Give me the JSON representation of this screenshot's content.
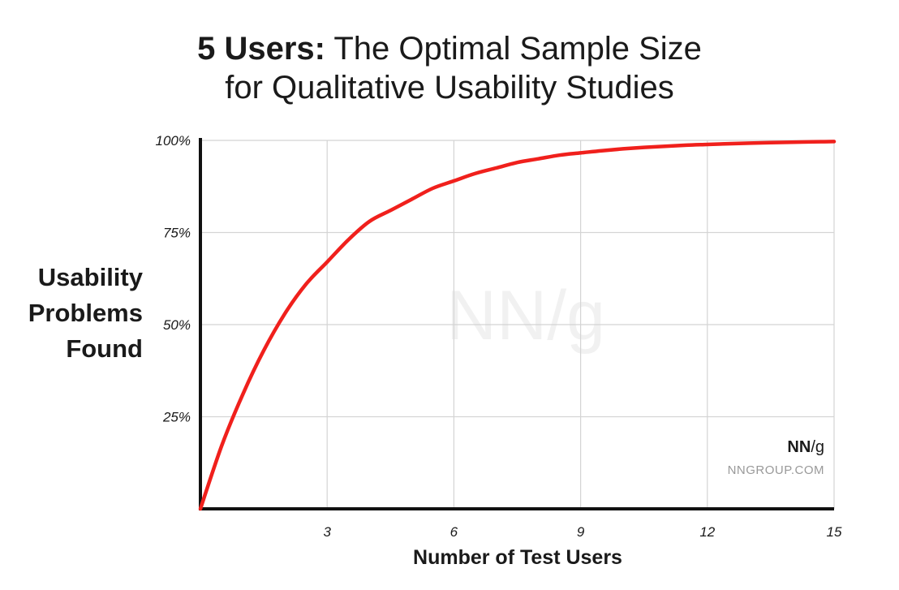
{
  "title": {
    "bold_part": "5 Users:",
    "rest_line1": "The Optimal Sample Size",
    "line2": "for Qualitative Usability Studies"
  },
  "ylabel_lines": [
    "Usability",
    "Problems",
    "Found"
  ],
  "xlabel": "Number of Test Users",
  "watermark": "NN/g",
  "brand": {
    "logo_bold": "NN",
    "logo_rest": "/g",
    "url": "NNGROUP.COM"
  },
  "colors": {
    "curve": "#f0201c",
    "grid": "#d4d4d4",
    "axis": "#111111"
  },
  "chart_data": {
    "type": "line",
    "title": "5 Users: The Optimal Sample Size for Qualitative Usability Studies",
    "xlabel": "Number of Test Users",
    "ylabel": "Usability Problems Found",
    "xlim": [
      0,
      15
    ],
    "ylim": [
      0,
      100
    ],
    "x_ticks": [
      3,
      6,
      9,
      12,
      15
    ],
    "y_ticks": [
      25,
      50,
      75,
      100
    ],
    "y_tick_labels": [
      "25%",
      "50%",
      "75%",
      "100%"
    ],
    "grid": true,
    "series": [
      {
        "x": [
          0,
          0.5,
          1,
          1.5,
          2,
          2.5,
          3,
          3.5,
          4,
          4.5,
          5,
          5.5,
          6,
          6.5,
          7,
          7.5,
          8,
          8.5,
          9,
          9.5,
          10,
          10.5,
          11,
          11.5,
          12,
          12.5,
          13,
          13.5,
          14,
          14.5,
          15
        ],
        "values": [
          0,
          17,
          31,
          43,
          53,
          61,
          67,
          73,
          78,
          81,
          84,
          87,
          89,
          91,
          92.5,
          94,
          95,
          96,
          96.6,
          97.2,
          97.7,
          98.1,
          98.4,
          98.7,
          98.9,
          99.1,
          99.25,
          99.4,
          99.5,
          99.6,
          99.7
        ]
      }
    ]
  }
}
